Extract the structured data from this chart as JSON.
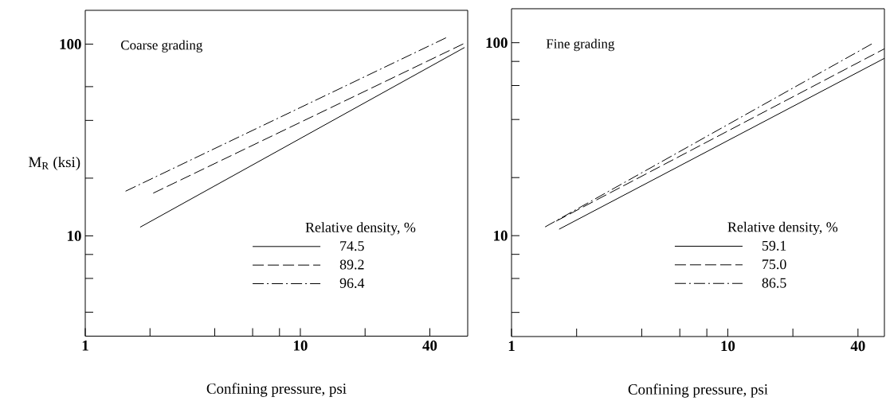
{
  "chart_data": [
    {
      "type": "line",
      "title": "Coarse grading",
      "xlabel": "Confining pressure, psi",
      "ylabel": "M$_{R}$ (ksi)",
      "legend_title": "Relative density, %",
      "log": "xy",
      "legend": "bottom",
      "xlim": [
        1,
        60
      ],
      "ylim": [
        3,
        150
      ],
      "xticks": [
        1,
        {
          "value": 2,
          "label": null
        },
        {
          "value": 4,
          "label": null
        },
        {
          "value": 6,
          "label": null
        },
        {
          "value": 8,
          "label": null
        },
        10,
        {
          "value": 20,
          "label": null
        },
        40
      ],
      "yticks": [
        {
          "value": 4,
          "label": null
        },
        {
          "value": 6,
          "label": null
        },
        {
          "value": 8,
          "label": null
        },
        10,
        {
          "value": 20,
          "label": null
        },
        {
          "value": 40,
          "label": null
        },
        {
          "value": 60,
          "label": null
        },
        100
      ],
      "series": [
        {
          "name": "74.5",
          "color": "#000000",
          "line_style": "solid",
          "x": [
            1.8,
            58
          ],
          "values": [
            11.1,
            96
          ]
        },
        {
          "name": "89.2",
          "color": "#000000",
          "line_style": "dashed",
          "x": [
            2.07,
            58
          ],
          "values": [
            16.7,
            101
          ]
        },
        {
          "name": "96.4",
          "color": "#000000",
          "line_style": "dashdot",
          "x": [
            1.54,
            48.5
          ],
          "values": [
            17.1,
            109
          ]
        }
      ]
    },
    {
      "type": "line",
      "title": "Fine grading",
      "xlabel": "Confining pressure, psi",
      "legend_title": "Relative density, %",
      "log": "xy",
      "legend": "bottom",
      "xlim": [
        1,
        53
      ],
      "ylim": [
        3,
        150
      ],
      "xticks": [
        1,
        {
          "value": 2,
          "label": null
        },
        {
          "value": 4,
          "label": null
        },
        {
          "value": 6,
          "label": null
        },
        {
          "value": 8,
          "label": null
        },
        10,
        {
          "value": 20,
          "label": null
        },
        40
      ],
      "yticks": [
        {
          "value": 4,
          "label": null
        },
        {
          "value": 6,
          "label": null
        },
        {
          "value": 8,
          "label": null
        },
        10,
        {
          "value": 20,
          "label": null
        },
        {
          "value": 40,
          "label": null
        },
        {
          "value": 60,
          "label": null
        },
        {
          "value": 80,
          "label": null
        },
        100
      ],
      "series": [
        {
          "name": "59.1",
          "color": "#000000",
          "line_style": "solid",
          "x": [
            1.66,
            53
          ],
          "values": [
            10.8,
            83
          ]
        },
        {
          "name": "75.0",
          "color": "#000000",
          "line_style": "dashed",
          "x": [
            1.61,
            53
          ],
          "values": [
            11.9,
            93
          ]
        },
        {
          "name": "86.5",
          "color": "#000000",
          "line_style": "dashdot",
          "x": [
            1.43,
            47.4
          ],
          "values": [
            11.1,
            100
          ]
        }
      ]
    }
  ]
}
